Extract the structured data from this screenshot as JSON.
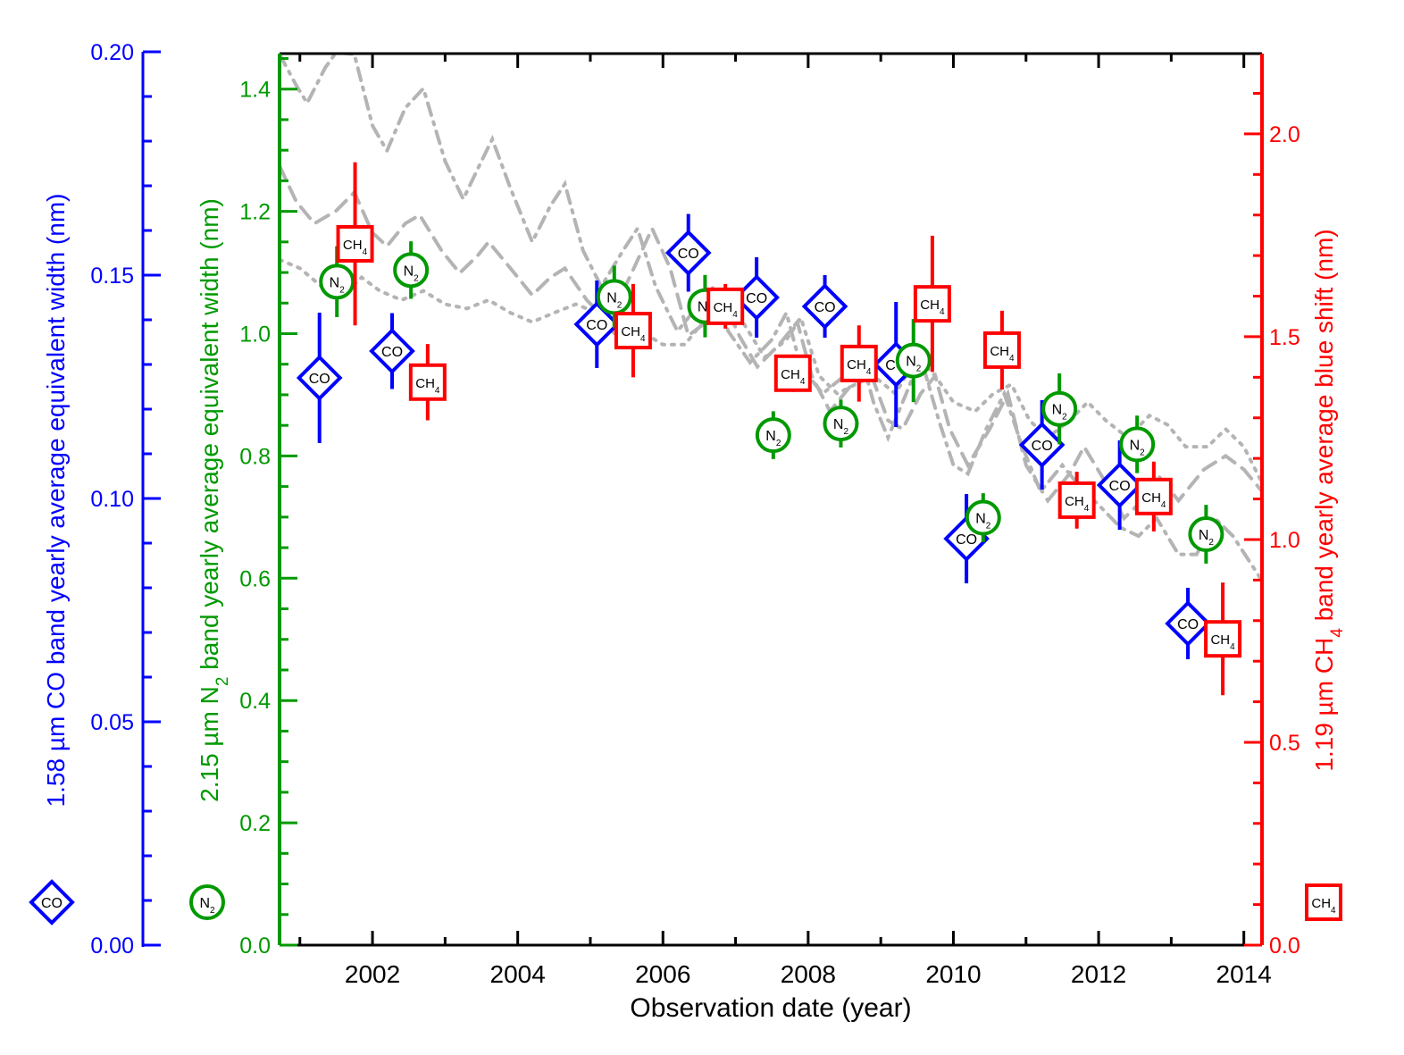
{
  "chart_data": {
    "type": "scatter",
    "xlabel": "Observation date (year)",
    "xlim": [
      2000.72,
      2014.25
    ],
    "x_ticks": [
      2002,
      2004,
      2006,
      2008,
      2010,
      2012,
      2014
    ],
    "axes": {
      "co": {
        "label_pre": "1.58 µm CO band yearly average equivalent width (nm)",
        "ylim": [
          0.0,
          0.2
        ],
        "ticks": [
          "0.00",
          "0.05",
          "0.10",
          "0.15",
          "0.20"
        ],
        "color": "#0000ff"
      },
      "n2": {
        "label_pre": "2.15 µm N",
        "label_sub": "2",
        "label_post": " band yearly average equivalent width (nm)",
        "ylim": [
          0.0,
          1.458
        ],
        "ticks": [
          "0.0",
          "0.2",
          "0.4",
          "0.6",
          "0.8",
          "1.0",
          "1.2",
          "1.4"
        ],
        "color": "#009900"
      },
      "ch4": {
        "label_pre": "1.19 µm CH",
        "label_sub": "4",
        "label_post": " band yearly average blue shift (nm)",
        "ylim": [
          0.0,
          2.198
        ],
        "ticks": [
          "0.0",
          "0.5",
          "1.0",
          "1.5",
          "2.0"
        ],
        "color": "#ff0000"
      }
    },
    "series": [
      {
        "name": "CO",
        "marker_text": "CO",
        "marker": "diamond",
        "axis": "co",
        "x": [
          2001.27,
          2002.27,
          2005.09,
          2006.35,
          2007.29,
          2008.23,
          2009.21,
          2010.18,
          2011.22,
          2012.29,
          2013.23
        ],
        "y": [
          0.127,
          0.133,
          0.139,
          0.155,
          0.145,
          0.143,
          0.13,
          0.091,
          0.112,
          0.103,
          0.072
        ],
        "err": [
          0.0146,
          0.0085,
          0.0098,
          0.0087,
          0.009,
          0.007,
          0.014,
          0.01,
          0.01,
          0.01,
          0.008
        ]
      },
      {
        "name": "N2",
        "marker_text": "N",
        "marker_sub": "2",
        "marker": "circle",
        "axis": "n2",
        "x": [
          2001.51,
          2002.53,
          2005.33,
          2006.58,
          2007.52,
          2008.45,
          2009.45,
          2010.41,
          2011.46,
          2012.53,
          2013.48
        ],
        "y": [
          1.085,
          1.104,
          1.06,
          1.045,
          0.834,
          0.853,
          0.956,
          0.699,
          0.877,
          0.819,
          0.672
        ],
        "err": [
          0.058,
          0.047,
          0.051,
          0.051,
          0.039,
          0.039,
          0.068,
          0.04,
          0.058,
          0.047,
          0.048
        ]
      },
      {
        "name": "CH4",
        "marker_text": "CH",
        "marker_sub": "4",
        "marker": "square",
        "axis": "ch4",
        "x": [
          2001.76,
          2002.76,
          2005.59,
          2006.86,
          2007.79,
          2008.7,
          2009.71,
          2010.67,
          2011.7,
          2012.76,
          2013.71
        ],
        "y": [
          1.729,
          1.388,
          1.515,
          1.575,
          1.41,
          1.434,
          1.581,
          1.467,
          1.097,
          1.106,
          0.755
        ],
        "err": [
          0.201,
          0.094,
          0.115,
          0.055,
          0.046,
          0.094,
          0.168,
          0.097,
          0.07,
          0.086,
          0.139
        ]
      }
    ],
    "model_curves": [
      {
        "style": "dash-dot",
        "axis": "n2",
        "x": [
          2000.72,
          2000.95,
          2001.1,
          2001.35,
          2001.5,
          2001.75,
          2002.0,
          2002.2,
          2002.45,
          2002.7,
          2003.0,
          2003.25,
          2003.5,
          2003.65,
          2003.9,
          2004.2,
          2004.45,
          2004.65,
          2004.9,
          2005.15,
          2005.45,
          2005.65,
          2005.9,
          2006.2,
          2006.5,
          2006.7,
          2006.9,
          2007.2,
          2007.5,
          2007.7,
          2007.9,
          2008.2,
          2008.5,
          2008.7,
          2008.9,
          2009.1,
          2009.35,
          2009.55,
          2009.8,
          2010.0,
          2010.2,
          2010.45,
          2010.7,
          2010.95,
          2011.2,
          2011.5,
          2011.7,
          2012.0,
          2012.3,
          2012.55,
          2012.8,
          2013.1,
          2013.35,
          2013.6,
          2013.85,
          2014.25
        ],
        "y": [
          1.457,
          1.406,
          1.377,
          1.435,
          1.46,
          1.457,
          1.34,
          1.299,
          1.369,
          1.401,
          1.282,
          1.22,
          1.282,
          1.318,
          1.238,
          1.15,
          1.209,
          1.245,
          1.136,
          1.077,
          1.136,
          1.172,
          1.077,
          1.004,
          1.048,
          1.077,
          1.004,
          0.953,
          0.99,
          1.034,
          0.946,
          0.902,
          0.931,
          0.975,
          0.888,
          0.83,
          0.902,
          0.961,
          0.858,
          0.785,
          0.771,
          0.844,
          0.902,
          0.815,
          0.742,
          0.785,
          0.756,
          0.72,
          0.683,
          0.669,
          0.698,
          0.639,
          0.639,
          0.698,
          0.669,
          0.596
        ]
      },
      {
        "style": "dashed",
        "axis": "n2",
        "x": [
          2000.72,
          2000.95,
          2001.2,
          2001.5,
          2001.75,
          2002.0,
          2002.2,
          2002.45,
          2002.65,
          2002.95,
          2003.2,
          2003.45,
          2003.6,
          2003.9,
          2004.2,
          2004.45,
          2004.65,
          2004.95,
          2005.25,
          2005.6,
          2005.85,
          2006.1,
          2006.35,
          2006.6,
          2006.8,
          2007.05,
          2007.3,
          2007.6,
          2007.85,
          2008.05,
          2008.3,
          2008.6,
          2008.85,
          2009.1,
          2009.3,
          2009.55,
          2009.75,
          2009.95,
          2010.2,
          2010.5,
          2010.75,
          2011.0,
          2011.3,
          2011.6,
          2011.8,
          2012.1,
          2012.35,
          2012.6,
          2012.8,
          2013.1,
          2013.45,
          2013.75,
          2014.0,
          2014.25
        ],
        "y": [
          1.274,
          1.216,
          1.18,
          1.201,
          1.231,
          1.165,
          1.143,
          1.18,
          1.194,
          1.136,
          1.099,
          1.128,
          1.15,
          1.107,
          1.063,
          1.092,
          1.107,
          1.055,
          1.019,
          1.107,
          1.172,
          1.107,
          0.997,
          1.019,
          1.063,
          0.997,
          0.946,
          0.982,
          1.019,
          0.931,
          0.873,
          0.917,
          0.939,
          0.858,
          0.844,
          0.902,
          0.931,
          0.844,
          0.785,
          0.844,
          0.902,
          0.785,
          0.727,
          0.771,
          0.815,
          0.756,
          0.698,
          0.727,
          0.771,
          0.727,
          0.778,
          0.8,
          0.778,
          0.742
        ]
      },
      {
        "style": "dotted",
        "axis": "n2",
        "x": [
          2000.72,
          2001.0,
          2001.3,
          2001.6,
          2001.85,
          2002.1,
          2002.4,
          2002.7,
          2003.0,
          2003.3,
          2003.6,
          2003.9,
          2004.2,
          2004.5,
          2004.8,
          2005.1,
          2005.4,
          2005.7,
          2006.0,
          2006.3,
          2006.6,
          2006.85,
          2007.1,
          2007.4,
          2007.7,
          2007.9,
          2008.15,
          2008.4,
          2008.65,
          2008.9,
          2009.2,
          2009.5,
          2009.75,
          2010.0,
          2010.3,
          2010.55,
          2010.8,
          2011.05,
          2011.3,
          2011.6,
          2011.85,
          2012.1,
          2012.4,
          2012.7,
          2012.95,
          2013.2,
          2013.5,
          2013.75,
          2014.0,
          2014.25
        ],
        "y": [
          1.121,
          1.107,
          1.077,
          1.063,
          1.092,
          1.07,
          1.055,
          1.07,
          1.048,
          1.041,
          1.055,
          1.034,
          1.019,
          1.034,
          1.048,
          1.034,
          0.99,
          1.004,
          0.982,
          0.982,
          1.026,
          1.048,
          1.019,
          0.961,
          0.99,
          1.026,
          0.931,
          0.902,
          0.917,
          0.931,
          0.902,
          0.961,
          0.931,
          0.888,
          0.873,
          0.902,
          0.917,
          0.858,
          0.83,
          0.858,
          0.888,
          0.858,
          0.83,
          0.866,
          0.851,
          0.815,
          0.815,
          0.844,
          0.815,
          0.756
        ]
      }
    ]
  }
}
